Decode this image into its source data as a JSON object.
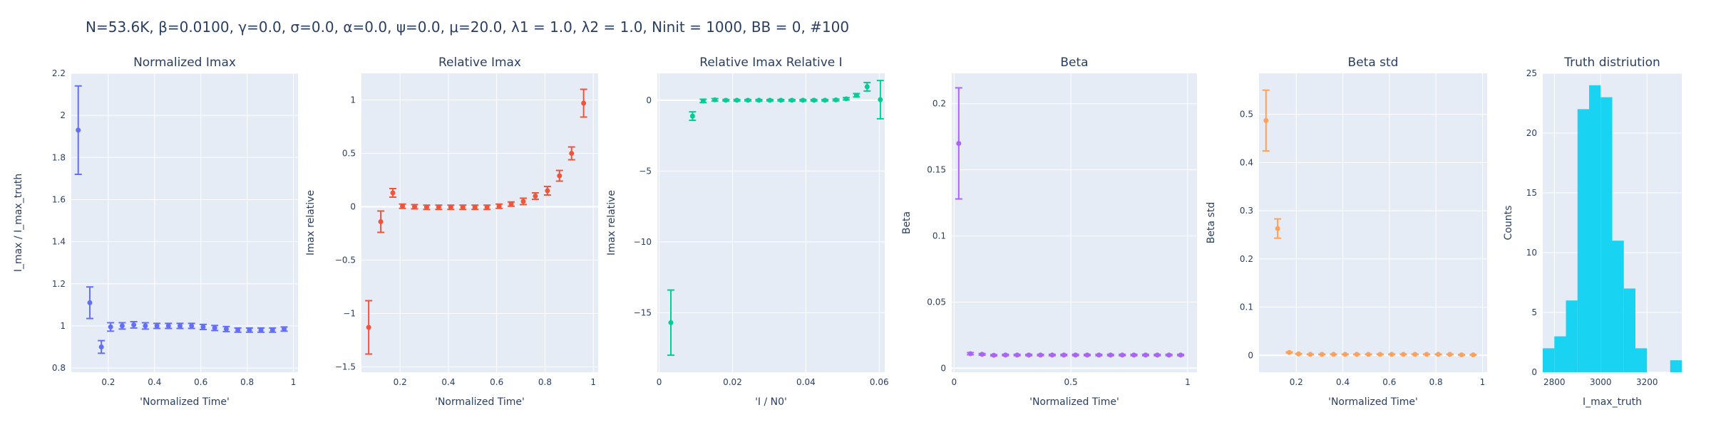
{
  "header": {
    "title": "N=53.6K, β=0.0100, γ=0.0, σ=0.0,  α=0.0, ψ=0.0, μ=20.0, λ1 = 1.0, λ2 = 1.0, Ninit = 1000, BB = 0, #100"
  },
  "colors": {
    "plot_bg": "#e5ecf6",
    "grid": "#ffffff",
    "text": "#2a3f5f"
  },
  "chart_data": [
    {
      "type": "scatter",
      "title": "Normalized Imax",
      "xlabel": "'Normalized Time'",
      "ylabel": "I_max / I_max_truth",
      "xlim": [
        0.04,
        1.02
      ],
      "ylim": [
        0.78,
        2.2
      ],
      "xticks": [
        0.2,
        0.4,
        0.6,
        0.8,
        1
      ],
      "xtick_labels": [
        "0.2",
        "0.4",
        "0.6",
        "0.8",
        "1"
      ],
      "yticks": [
        0.8,
        1,
        1.2,
        1.4,
        1.6,
        1.8,
        2,
        2.2
      ],
      "ytick_labels": [
        "0.8",
        "1",
        "1.2",
        "1.4",
        "1.6",
        "1.8",
        "2",
        "2.2"
      ],
      "color": "#636efa",
      "zeroline": false,
      "series": [
        {
          "x": [
            0.07,
            0.12,
            0.17,
            0.21,
            0.26,
            0.31,
            0.36,
            0.41,
            0.46,
            0.51,
            0.56,
            0.61,
            0.66,
            0.71,
            0.76,
            0.81,
            0.86,
            0.91,
            0.96
          ],
          "y": [
            1.93,
            1.11,
            0.9,
            0.995,
            1.0,
            1.005,
            1.0,
            1.0,
            1.0,
            1.0,
            1.0,
            0.995,
            0.99,
            0.985,
            0.98,
            0.98,
            0.98,
            0.98,
            0.985
          ],
          "err": [
            0.21,
            0.075,
            0.03,
            0.02,
            0.015,
            0.015,
            0.015,
            0.012,
            0.012,
            0.012,
            0.012,
            0.012,
            0.012,
            0.012,
            0.01,
            0.01,
            0.01,
            0.01,
            0.01
          ]
        }
      ]
    },
    {
      "type": "scatter",
      "title": "Relative Imax",
      "xlabel": "'Normalized Time'",
      "ylabel": "Imax relative",
      "xlim": [
        0.04,
        1.02
      ],
      "ylim": [
        -1.55,
        1.25
      ],
      "xticks": [
        0.2,
        0.4,
        0.6,
        0.8,
        1
      ],
      "xtick_labels": [
        "0.2",
        "0.4",
        "0.6",
        "0.8",
        "1"
      ],
      "yticks": [
        -1.5,
        -1,
        -0.5,
        0,
        0.5,
        1
      ],
      "ytick_labels": [
        "−1.5",
        "−1",
        "−0.5",
        "0",
        "0.5",
        "1"
      ],
      "color": "#ef553b",
      "zeroline": true,
      "series": [
        {
          "x": [
            0.07,
            0.12,
            0.17,
            0.21,
            0.26,
            0.31,
            0.36,
            0.41,
            0.46,
            0.51,
            0.56,
            0.61,
            0.66,
            0.71,
            0.76,
            0.81,
            0.86,
            0.91,
            0.96
          ],
          "y": [
            -1.13,
            -0.14,
            0.13,
            0.005,
            0.0,
            -0.005,
            -0.005,
            -0.005,
            -0.005,
            -0.005,
            -0.005,
            0.005,
            0.025,
            0.05,
            0.1,
            0.15,
            0.29,
            0.5,
            0.97
          ],
          "err": [
            0.25,
            0.1,
            0.04,
            0.02,
            0.02,
            0.02,
            0.02,
            0.02,
            0.02,
            0.02,
            0.02,
            0.02,
            0.02,
            0.03,
            0.03,
            0.04,
            0.05,
            0.06,
            0.13
          ]
        }
      ]
    },
    {
      "type": "scatter",
      "title": "Relative Imax Relative I",
      "xlabel": "'I / N0'",
      "ylabel": "Imax relative",
      "xlim": [
        -0.0005,
        0.0615
      ],
      "ylim": [
        -19.2,
        1.9
      ],
      "xticks": [
        0,
        0.02,
        0.04,
        0.06
      ],
      "xtick_labels": [
        "0",
        "0.02",
        "0.04",
        "0.06"
      ],
      "yticks": [
        -15,
        -10,
        -5,
        0
      ],
      "ytick_labels": [
        "−15",
        "−10",
        "−5",
        "0"
      ],
      "color": "#00cc96",
      "zeroline": true,
      "series": [
        {
          "x": [
            0.0032,
            0.0091,
            0.012,
            0.0152,
            0.0182,
            0.0212,
            0.0242,
            0.0272,
            0.0302,
            0.0332,
            0.0362,
            0.0392,
            0.0422,
            0.0452,
            0.0482,
            0.051,
            0.0538,
            0.0567,
            0.0603
          ],
          "y": [
            -15.7,
            -1.12,
            -0.05,
            0.03,
            0.0,
            0.0,
            0.0,
            0.0,
            0.0,
            0.0,
            0.0,
            0.0,
            0.0,
            0.0,
            0.02,
            0.1,
            0.35,
            0.95,
            0.04
          ],
          "err": [
            2.3,
            0.3,
            0.12,
            0.08,
            0.05,
            0.05,
            0.05,
            0.05,
            0.05,
            0.05,
            0.05,
            0.05,
            0.05,
            0.05,
            0.06,
            0.08,
            0.12,
            0.3,
            1.35
          ]
        }
      ]
    },
    {
      "type": "scatter",
      "title": "Beta",
      "xlabel": "'Normalized Time'",
      "ylabel": "Beta",
      "xlim": [
        -0.01,
        1.04
      ],
      "ylim": [
        -0.003,
        0.223
      ],
      "xticks": [
        0,
        0.5,
        1
      ],
      "xtick_labels": [
        "0",
        "0.5",
        "1"
      ],
      "yticks": [
        0,
        0.05,
        0.1,
        0.15,
        0.2
      ],
      "ytick_labels": [
        "0",
        "0.05",
        "0.1",
        "0.15",
        "0.2"
      ],
      "color": "#ab63fa",
      "zeroline": true,
      "series": [
        {
          "x": [
            0.02,
            0.07,
            0.12,
            0.17,
            0.22,
            0.27,
            0.32,
            0.37,
            0.42,
            0.47,
            0.52,
            0.57,
            0.62,
            0.67,
            0.72,
            0.77,
            0.82,
            0.87,
            0.92,
            0.97
          ],
          "y": [
            0.17,
            0.011,
            0.0105,
            0.0098,
            0.01,
            0.01,
            0.01,
            0.01,
            0.01,
            0.01,
            0.01,
            0.01,
            0.01,
            0.01,
            0.01,
            0.01,
            0.01,
            0.01,
            0.01,
            0.01
          ],
          "err": [
            0.042,
            0.0008,
            0.0006,
            0.0005,
            0.0005,
            0.0005,
            0.0005,
            0.0005,
            0.0005,
            0.0005,
            0.0005,
            0.0005,
            0.0005,
            0.0005,
            0.0005,
            0.0005,
            0.0005,
            0.0005,
            0.0005,
            0.0005
          ]
        }
      ]
    },
    {
      "type": "scatter",
      "title": "Beta std",
      "xlabel": "'Normalized Time'",
      "ylabel": "Beta std",
      "xlim": [
        0.04,
        1.02
      ],
      "ylim": [
        -0.035,
        0.585
      ],
      "xticks": [
        0.2,
        0.4,
        0.6,
        0.8,
        1
      ],
      "xtick_labels": [
        "0.2",
        "0.4",
        "0.6",
        "0.8",
        "1"
      ],
      "yticks": [
        0,
        0.1,
        0.2,
        0.3,
        0.4,
        0.5
      ],
      "ytick_labels": [
        "0",
        "0.1",
        "0.2",
        "0.3",
        "0.4",
        "0.5"
      ],
      "color": "#ffa15a",
      "zeroline": true,
      "series": [
        {
          "x": [
            0.07,
            0.12,
            0.17,
            0.21,
            0.26,
            0.31,
            0.36,
            0.41,
            0.46,
            0.51,
            0.56,
            0.61,
            0.66,
            0.71,
            0.76,
            0.81,
            0.86,
            0.91,
            0.96
          ],
          "y": [
            0.487,
            0.263,
            0.006,
            0.003,
            0.002,
            0.002,
            0.002,
            0.002,
            0.002,
            0.002,
            0.002,
            0.002,
            0.002,
            0.002,
            0.002,
            0.002,
            0.002,
            0.001,
            0.001
          ],
          "err": [
            0.063,
            0.02,
            0.001,
            0.0005,
            0.0005,
            0.0005,
            0.0005,
            0.0005,
            0.0005,
            0.0005,
            0.0005,
            0.0005,
            0.0005,
            0.0005,
            0.0005,
            0.0005,
            0.0005,
            0.0005,
            0.0005
          ]
        }
      ]
    },
    {
      "type": "bar",
      "title": "Truth distriution",
      "xlabel": "I_max_truth",
      "ylabel": "Counts",
      "xlim": [
        2750,
        3350
      ],
      "ylim": [
        0,
        25
      ],
      "xticks": [
        2800,
        3000,
        3200
      ],
      "xtick_labels": [
        "2800",
        "3000",
        "3200"
      ],
      "yticks": [
        0,
        5,
        10,
        15,
        20,
        25
      ],
      "ytick_labels": [
        "0",
        "5",
        "10",
        "15",
        "20",
        "25"
      ],
      "color": "#19d3f3",
      "zeroline": false,
      "bin_width": 50,
      "bins": [
        {
          "x0": 2750,
          "count": 2
        },
        {
          "x0": 2800,
          "count": 3
        },
        {
          "x0": 2850,
          "count": 6
        },
        {
          "x0": 2900,
          "count": 22
        },
        {
          "x0": 2950,
          "count": 24
        },
        {
          "x0": 3000,
          "count": 23
        },
        {
          "x0": 3050,
          "count": 11
        },
        {
          "x0": 3100,
          "count": 7
        },
        {
          "x0": 3150,
          "count": 2
        },
        {
          "x0": 3300,
          "count": 1
        }
      ]
    }
  ]
}
